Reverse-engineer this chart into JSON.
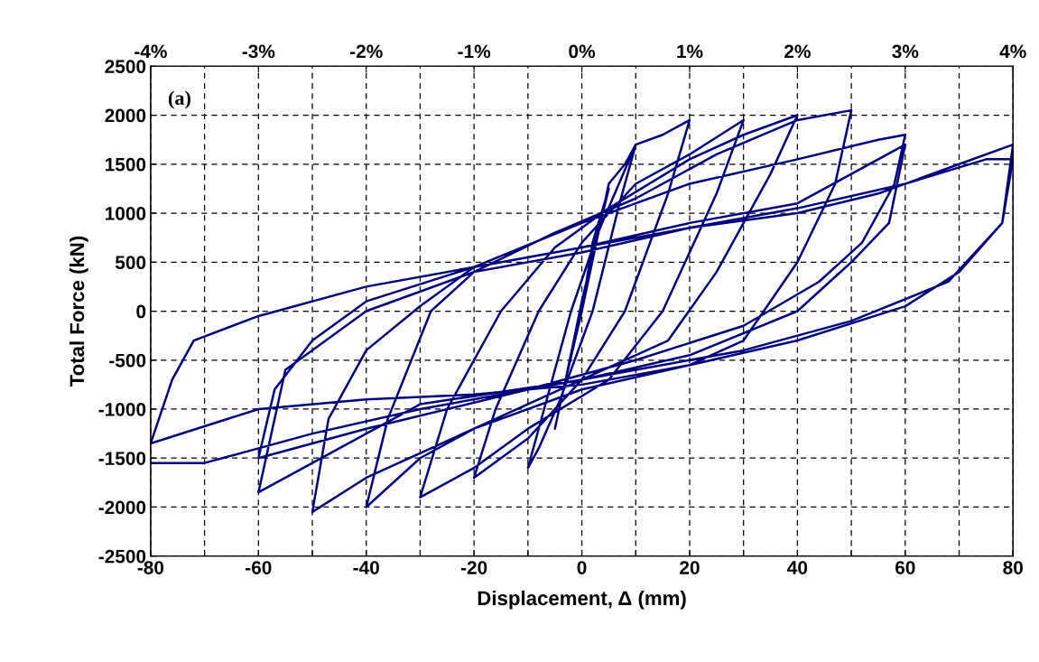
{
  "chart_data": {
    "type": "line",
    "xlabel": "Displacement, Δ (mm)",
    "ylabel": "Total Force (kN)",
    "annotations": [
      "(a)"
    ],
    "xlim": [
      -80,
      80
    ],
    "xticks": [
      -80,
      {
        "value": -70,
        "label": null
      },
      -60,
      {
        "value": -50,
        "label": null
      },
      -40,
      {
        "value": -30,
        "label": null
      },
      -20,
      {
        "value": -10,
        "label": null
      },
      0,
      {
        "value": 10,
        "label": null
      },
      20,
      {
        "value": 30,
        "label": null
      },
      40,
      {
        "value": 50,
        "label": null
      },
      60,
      {
        "value": 70,
        "label": null
      },
      80
    ],
    "ylim": [
      -2500,
      2500
    ],
    "yticks": [
      -2500,
      -2000,
      -1500,
      -1000,
      -500,
      0,
      500,
      1000,
      1500,
      2000,
      2500
    ],
    "x2lim": [
      -4,
      4
    ],
    "x2ticks": [
      {
        "value": -4,
        "label": "-4%"
      },
      {
        "value": -3,
        "label": "-3%"
      },
      {
        "value": -2,
        "label": "-2%"
      },
      {
        "value": -1,
        "label": "-1%"
      },
      {
        "value": 0,
        "label": "0%"
      },
      {
        "value": 1,
        "label": "1%"
      },
      {
        "value": 2,
        "label": "2%"
      },
      {
        "value": 3,
        "label": "3%"
      },
      {
        "value": 4,
        "label": "4%"
      }
    ],
    "grid": true,
    "line_style": "solid",
    "marker": "none",
    "series": [
      {
        "color": "#000080",
        "x": [
          0,
          2,
          5,
          3,
          0,
          -3,
          -5,
          -3,
          0,
          5,
          8,
          10,
          7,
          2,
          -4,
          -8,
          -10,
          -7,
          -2,
          3,
          10,
          15,
          20,
          16,
          8,
          0,
          -10,
          -20,
          -16,
          -8,
          0,
          10,
          20,
          30,
          25,
          15,
          5,
          -10,
          -20,
          -30,
          -25,
          -15,
          -5,
          5,
          20,
          30,
          40,
          35,
          25,
          16,
          0,
          -20,
          -30,
          -40,
          -36,
          -28,
          -20,
          -5,
          10,
          25,
          40,
          50,
          47,
          40,
          30,
          20,
          0,
          -20,
          -40,
          -50,
          -47,
          -40,
          -30,
          -20,
          0,
          20,
          40,
          55,
          60,
          58,
          52,
          44,
          30,
          10,
          -10,
          -40,
          -60,
          -57,
          -50,
          -40,
          -20,
          0,
          20,
          40,
          60,
          57,
          50,
          40,
          20,
          0,
          -30,
          -60,
          -55,
          -40,
          -20,
          0,
          20,
          40,
          55,
          70,
          80,
          78,
          70,
          60,
          40,
          20,
          0,
          -20,
          -40,
          -60,
          -80,
          -76,
          -72,
          -60,
          -40,
          -20,
          0,
          20,
          40,
          60,
          75,
          80,
          78,
          68,
          50,
          30,
          10,
          -10,
          -30,
          -50,
          -70,
          -80
        ],
        "values": [
          0,
          700,
          1250,
          800,
          100,
          -700,
          -1200,
          -700,
          0,
          1300,
          1500,
          1700,
          1100,
          0,
          -900,
          -1400,
          -1600,
          -1000,
          0,
          800,
          1700,
          1800,
          1950,
          1200,
          0,
          -700,
          -1300,
          -1700,
          -1000,
          0,
          700,
          1300,
          1600,
          1950,
          1200,
          0,
          -700,
          -1200,
          -1600,
          -1900,
          -1000,
          0,
          650,
          1050,
          1550,
          1800,
          2000,
          1400,
          400,
          -300,
          -700,
          -1200,
          -1500,
          -2000,
          -1100,
          0,
          400,
          800,
          1150,
          1600,
          1950,
          2050,
          1300,
          500,
          -300,
          -550,
          -800,
          -1200,
          -1700,
          -2050,
          -1100,
          -400,
          50,
          450,
          900,
          1300,
          1550,
          1750,
          1800,
          1300,
          700,
          300,
          -150,
          -500,
          -800,
          -1200,
          -1500,
          -800,
          -300,
          100,
          450,
          650,
          900,
          1100,
          1700,
          900,
          500,
          0,
          -450,
          -700,
          -950,
          -1850,
          -600,
          0,
          400,
          600,
          850,
          1000,
          1200,
          1500,
          1700,
          900,
          400,
          50,
          -300,
          -550,
          -750,
          -850,
          -900,
          -1000,
          -1350,
          -700,
          -300,
          -50,
          250,
          450,
          650,
          850,
          1050,
          1300,
          1550,
          1550,
          900,
          300,
          -100,
          -400,
          -600,
          -800,
          -1000,
          -1250,
          -1550,
          -1550
        ]
      }
    ]
  }
}
